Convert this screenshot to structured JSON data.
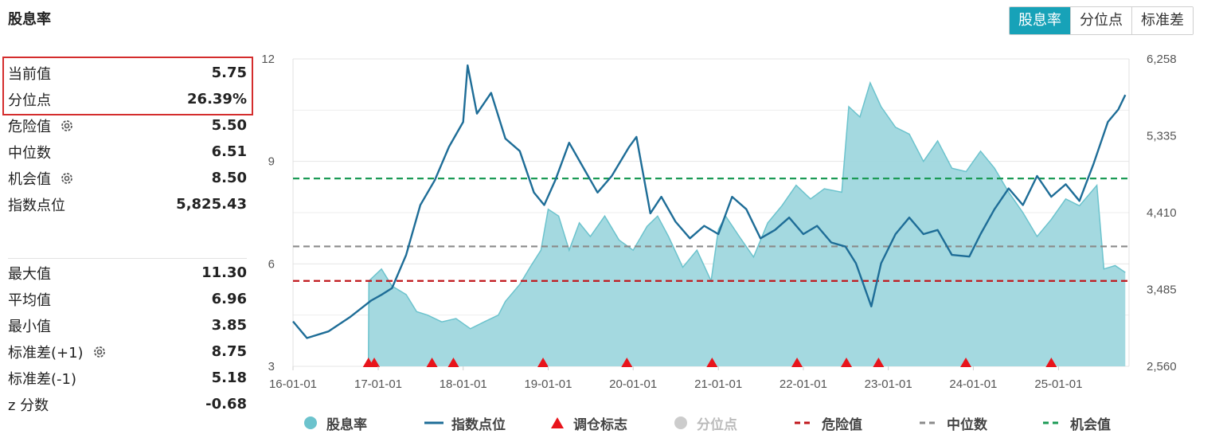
{
  "header": {
    "title": "股息率"
  },
  "tabs": [
    "股息率",
    "分位点",
    "标准差"
  ],
  "stats": {
    "current": {
      "label": "当前值",
      "value": "5.75"
    },
    "percentile": {
      "label": "分位点",
      "value": "26.39%"
    },
    "danger": {
      "label": "危险值",
      "value": "5.50"
    },
    "median": {
      "label": "中位数",
      "value": "6.51"
    },
    "opportunity": {
      "label": "机会值",
      "value": "8.50"
    },
    "index_level": {
      "label": "指数点位",
      "value": "5,825.43"
    },
    "max": {
      "label": "最大值",
      "value": "11.30"
    },
    "mean": {
      "label": "平均值",
      "value": "6.96"
    },
    "min": {
      "label": "最小值",
      "value": "3.85"
    },
    "sd_plus": {
      "label": "标准差(+1)",
      "value": "8.75"
    },
    "sd_minus": {
      "label": "标准差(-1)",
      "value": "5.18"
    },
    "zscore": {
      "label": "z 分数",
      "value": "-0.68"
    }
  },
  "legend": [
    "股息率",
    "指数点位",
    "调仓标志",
    "分位点",
    "危险值",
    "中位数",
    "机会值"
  ],
  "colors": {
    "area": "#9fd7de",
    "area_line": "#6cc3cd",
    "index_line": "#1e6d97",
    "marker": "#e8141b",
    "danger": "#c0161b",
    "median": "#8a8a8a",
    "opportunity": "#1b9a55",
    "accent": "#17a2b8"
  },
  "chart_data": {
    "type": "area",
    "x_ticks": [
      "16-01-01",
      "17-01-01",
      "18-01-01",
      "19-01-01",
      "20-01-01",
      "21-01-01",
      "22-01-01",
      "23-01-01",
      "24-01-01",
      "25-01-01"
    ],
    "y_left": {
      "ticks": [
        "3",
        "6",
        "9",
        "12"
      ],
      "range": [
        3,
        12
      ]
    },
    "y_right": {
      "ticks": [
        "2,560",
        "3,485",
        "4,410",
        "5,335",
        "6,258"
      ],
      "range": [
        2560,
        6258
      ]
    },
    "grid": true,
    "dividend_yield_series": [
      [
        "2016-11-20",
        3.0
      ],
      [
        "2016-11-22",
        5.5
      ],
      [
        "2017-01-15",
        5.85
      ],
      [
        "2017-03-01",
        5.35
      ],
      [
        "2017-05-01",
        5.1
      ],
      [
        "2017-06-15",
        4.6
      ],
      [
        "2017-08-01",
        4.5
      ],
      [
        "2017-10-01",
        4.3
      ],
      [
        "2017-12-01",
        4.4
      ],
      [
        "2018-02-01",
        4.1
      ],
      [
        "2018-04-01",
        4.3
      ],
      [
        "2018-06-01",
        4.5
      ],
      [
        "2018-07-01",
        4.9
      ],
      [
        "2018-09-01",
        5.4
      ],
      [
        "2018-10-15",
        5.9
      ],
      [
        "2018-12-01",
        6.4
      ],
      [
        "2019-01-01",
        7.6
      ],
      [
        "2019-02-15",
        7.4
      ],
      [
        "2019-04-01",
        6.4
      ],
      [
        "2019-05-15",
        7.2
      ],
      [
        "2019-07-01",
        6.8
      ],
      [
        "2019-09-01",
        7.4
      ],
      [
        "2019-11-01",
        6.7
      ],
      [
        "2020-01-01",
        6.4
      ],
      [
        "2020-03-01",
        7.1
      ],
      [
        "2020-04-15",
        7.4
      ],
      [
        "2020-06-01",
        6.8
      ],
      [
        "2020-08-01",
        5.9
      ],
      [
        "2020-10-01",
        6.4
      ],
      [
        "2020-12-01",
        5.5
      ],
      [
        "2021-01-01",
        7.0
      ],
      [
        "2021-02-01",
        7.4
      ],
      [
        "2021-04-01",
        6.8
      ],
      [
        "2021-06-01",
        6.2
      ],
      [
        "2021-08-01",
        7.2
      ],
      [
        "2021-10-01",
        7.7
      ],
      [
        "2021-12-01",
        8.3
      ],
      [
        "2022-02-01",
        7.9
      ],
      [
        "2022-04-01",
        8.2
      ],
      [
        "2022-06-15",
        8.1
      ],
      [
        "2022-07-15",
        10.6
      ],
      [
        "2022-09-01",
        10.3
      ],
      [
        "2022-10-15",
        11.3
      ],
      [
        "2022-12-01",
        10.6
      ],
      [
        "2023-02-01",
        10.0
      ],
      [
        "2023-04-01",
        9.8
      ],
      [
        "2023-06-01",
        9.0
      ],
      [
        "2023-08-01",
        9.6
      ],
      [
        "2023-10-01",
        8.8
      ],
      [
        "2023-12-01",
        8.7
      ],
      [
        "2024-02-01",
        9.3
      ],
      [
        "2024-04-01",
        8.8
      ],
      [
        "2024-06-01",
        8.1
      ],
      [
        "2024-08-01",
        7.5
      ],
      [
        "2024-10-01",
        6.8
      ],
      [
        "2024-12-01",
        7.3
      ],
      [
        "2025-02-01",
        7.9
      ],
      [
        "2025-04-01",
        7.7
      ],
      [
        "2025-06-15",
        8.3
      ],
      [
        "2025-07-15",
        5.85
      ],
      [
        "2025-09-01",
        5.95
      ],
      [
        "2025-10-15",
        5.75
      ]
    ],
    "index_series": [
      [
        "2016-01-01",
        3100
      ],
      [
        "2016-03-01",
        2900
      ],
      [
        "2016-06-01",
        2980
      ],
      [
        "2016-09-01",
        3150
      ],
      [
        "2016-12-01",
        3350
      ],
      [
        "2017-01-15",
        3420
      ],
      [
        "2017-03-01",
        3500
      ],
      [
        "2017-05-01",
        3900
      ],
      [
        "2017-07-01",
        4500
      ],
      [
        "2017-09-01",
        4800
      ],
      [
        "2017-11-01",
        5200
      ],
      [
        "2018-01-01",
        5500
      ],
      [
        "2018-01-20",
        6180
      ],
      [
        "2018-03-01",
        5600
      ],
      [
        "2018-05-01",
        5850
      ],
      [
        "2018-07-01",
        5300
      ],
      [
        "2018-09-01",
        5150
      ],
      [
        "2018-11-01",
        4650
      ],
      [
        "2018-12-15",
        4500
      ],
      [
        "2019-02-01",
        4800
      ],
      [
        "2019-04-01",
        5250
      ],
      [
        "2019-06-01",
        4950
      ],
      [
        "2019-08-01",
        4650
      ],
      [
        "2019-10-01",
        4850
      ],
      [
        "2019-12-15",
        5200
      ],
      [
        "2020-01-15",
        5320
      ],
      [
        "2020-03-15",
        4400
      ],
      [
        "2020-05-01",
        4600
      ],
      [
        "2020-07-01",
        4300
      ],
      [
        "2020-09-01",
        4100
      ],
      [
        "2020-11-01",
        4250
      ],
      [
        "2021-01-01",
        4150
      ],
      [
        "2021-03-01",
        4600
      ],
      [
        "2021-05-01",
        4450
      ],
      [
        "2021-07-01",
        4100
      ],
      [
        "2021-09-01",
        4200
      ],
      [
        "2021-11-01",
        4350
      ],
      [
        "2022-01-01",
        4150
      ],
      [
        "2022-03-01",
        4250
      ],
      [
        "2022-05-01",
        4050
      ],
      [
        "2022-07-01",
        4000
      ],
      [
        "2022-08-15",
        3800
      ],
      [
        "2022-10-20",
        3280
      ],
      [
        "2022-12-01",
        3800
      ],
      [
        "2023-02-01",
        4150
      ],
      [
        "2023-04-01",
        4350
      ],
      [
        "2023-06-01",
        4150
      ],
      [
        "2023-08-01",
        4200
      ],
      [
        "2023-10-01",
        3900
      ],
      [
        "2023-12-15",
        3880
      ],
      [
        "2024-02-01",
        4150
      ],
      [
        "2024-04-01",
        4450
      ],
      [
        "2024-06-01",
        4700
      ],
      [
        "2024-08-01",
        4500
      ],
      [
        "2024-10-01",
        4850
      ],
      [
        "2024-12-01",
        4600
      ],
      [
        "2025-02-01",
        4750
      ],
      [
        "2025-04-01",
        4550
      ],
      [
        "2025-06-01",
        5000
      ],
      [
        "2025-08-01",
        5500
      ],
      [
        "2025-09-15",
        5650
      ],
      [
        "2025-10-15",
        5825
      ]
    ],
    "markers": [
      "2016-11-20",
      "2016-12-15",
      "2017-08-20",
      "2017-11-20",
      "2018-12-10",
      "2019-12-05",
      "2020-12-05",
      "2021-12-05",
      "2022-07-05",
      "2022-11-20",
      "2023-11-30",
      "2024-12-01"
    ],
    "danger_value": 5.5,
    "median_value": 6.51,
    "opportunity_value": 8.5
  }
}
